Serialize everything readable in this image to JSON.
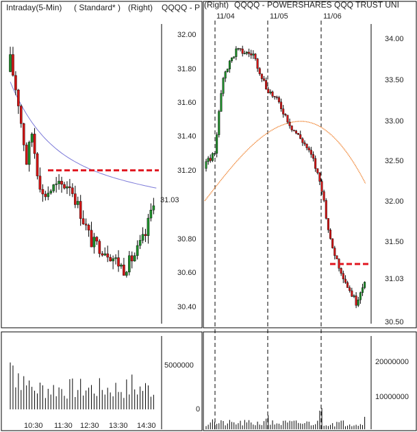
{
  "colors": {
    "up": "#1e8c2a",
    "down": "#d21414",
    "wick": "#000000",
    "left_ma": "#7a78d8",
    "right_ma": "#f08a3c",
    "level_line": "#e0141e",
    "volume": "#000000",
    "frame": "#000000"
  },
  "chart_data": [
    {
      "type": "candlestick",
      "panel": "left-price",
      "header_left": "Intraday(5-Min)",
      "header_mid": "( Standard* )",
      "header_right": "(Right)",
      "header_symbol": "QQQQ - P",
      "y_ticks": [
        "32.00",
        "31.80",
        "31.60",
        "31.40",
        "31.20",
        "31.03",
        "30.80",
        "30.60",
        "30.40"
      ],
      "y_values": [
        32.0,
        31.8,
        31.6,
        31.4,
        31.2,
        31.03,
        30.8,
        30.6,
        30.4
      ],
      "ylim": [
        30.3,
        32.06
      ],
      "grid": false,
      "level_line": 31.2,
      "last_price": 31.03,
      "moving_average": "blue"
    },
    {
      "type": "bar",
      "panel": "left-volume",
      "x_ticks": [
        "10:30",
        "11:30",
        "12:30",
        "13:30",
        "14:30"
      ],
      "y_ticks": [
        "5000000",
        "0"
      ],
      "y_values": [
        5000000,
        0
      ]
    },
    {
      "type": "candlestick",
      "panel": "right-price",
      "header_left": "(Right)",
      "header_symbol": "QQQQ - POWERSHARES QQQ TRUST UNI",
      "date_labels": [
        "11/04",
        "11/05",
        "11/06"
      ],
      "y_ticks": [
        "34.00",
        "33.50",
        "33.00",
        "32.50",
        "32.00",
        "31.50",
        "31.03",
        "30.50"
      ],
      "y_values": [
        34.0,
        33.5,
        33.0,
        32.5,
        32.0,
        31.5,
        31.03,
        30.5
      ],
      "ylim": [
        30.45,
        34.2
      ],
      "grid": false,
      "level_line": 31.2,
      "last_price": 31.03,
      "moving_average": "orange"
    },
    {
      "type": "bar",
      "panel": "right-volume",
      "y_ticks": [
        "20000000",
        "10000000",
        "0"
      ],
      "y_values": [
        20000000,
        10000000,
        0
      ]
    }
  ]
}
